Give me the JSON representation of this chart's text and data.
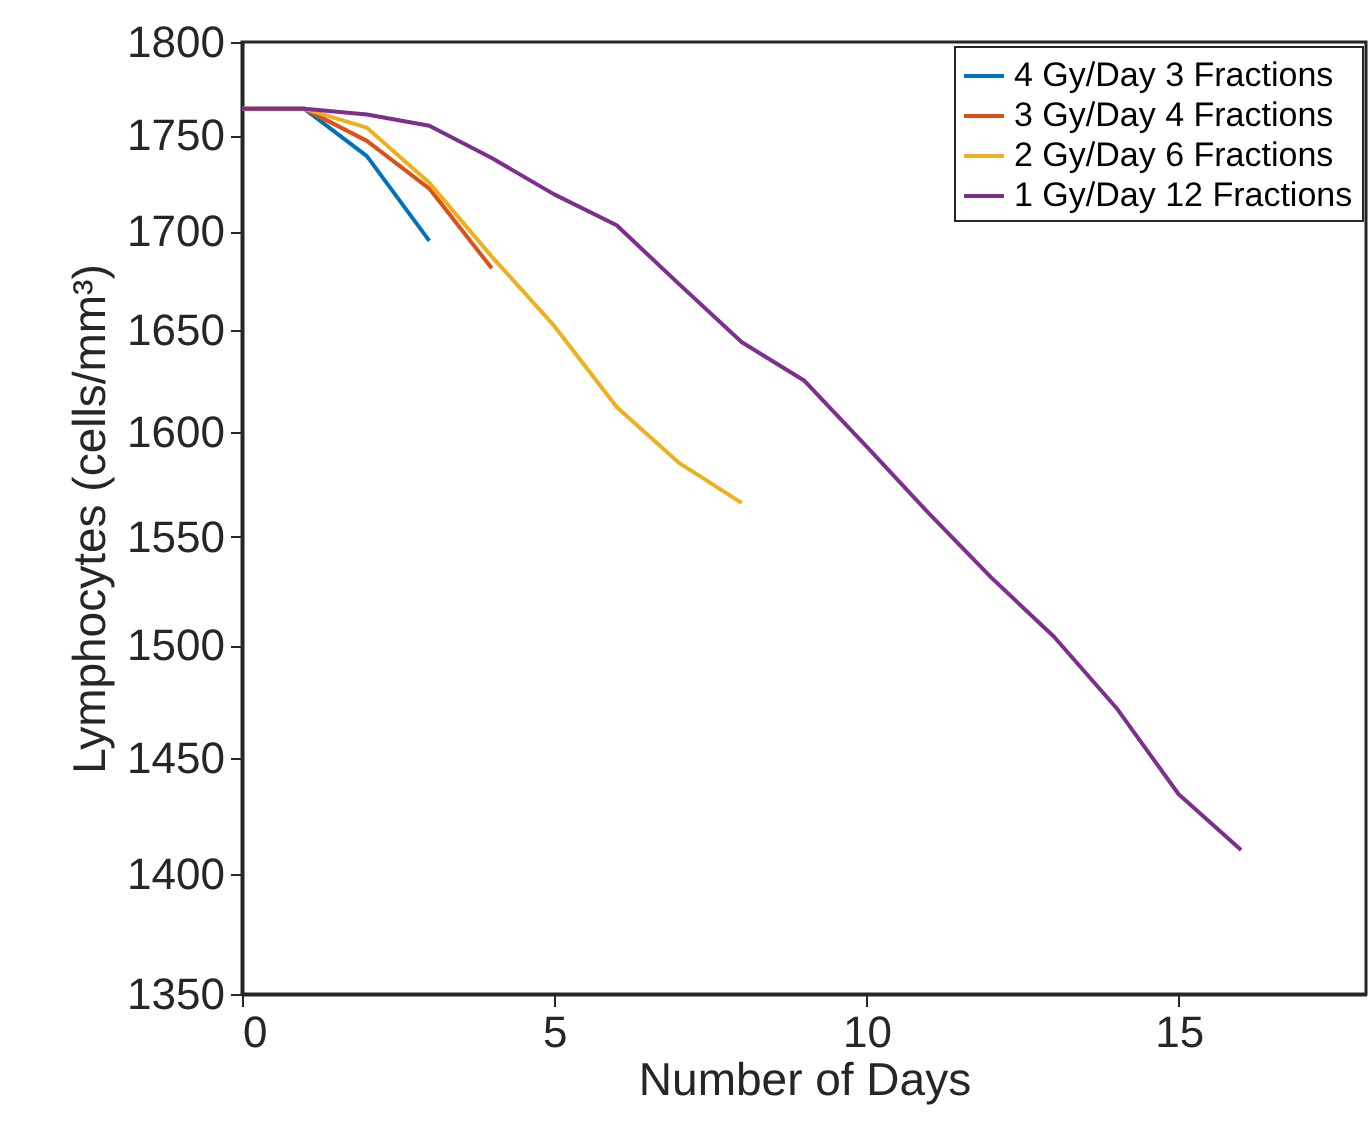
{
  "chart_data": {
    "type": "line",
    "xlabel": "Number of Days",
    "ylabel": "Lymphocytes (cells/mm³)",
    "xlim": [
      0,
      18
    ],
    "xticks": [
      0,
      5,
      10,
      15
    ],
    "ylim": [
      1350,
      1800
    ],
    "yticks": [
      1350,
      1400,
      1450,
      1500,
      1550,
      1600,
      1650,
      1700,
      1750,
      1800
    ],
    "log": "y",
    "grid": false,
    "legend": "top right",
    "marker": "none",
    "line_style": "solid",
    "series": [
      {
        "name": "4 Gy/Day 3 Fractions",
        "color": "#0072bd",
        "x": [
          0,
          1,
          2,
          3
        ],
        "values": [
          1764,
          1764,
          1739,
          1695
        ]
      },
      {
        "name": "3 Gy/Day 4 Fractions",
        "color": "#d95319",
        "x": [
          0,
          1,
          2,
          3,
          4
        ],
        "values": [
          1764,
          1764,
          1747,
          1722,
          1681
        ]
      },
      {
        "name": "2 Gy/Day 6 Fractions",
        "color": "#edb120",
        "x": [
          0,
          1,
          2,
          3,
          4,
          5,
          6,
          7,
          8
        ],
        "values": [
          1764,
          1764,
          1754,
          1725,
          1687,
          1652,
          1612,
          1585,
          1566
        ]
      },
      {
        "name": "1 Gy/Day 12 Fractions",
        "color": "#7e2f8e",
        "x": [
          0,
          1,
          2,
          3,
          4,
          5,
          6,
          7,
          8,
          9,
          10,
          11,
          12,
          13,
          14,
          15,
          16
        ],
        "values": [
          1764,
          1764,
          1761,
          1755,
          1738,
          1719,
          1703,
          1673,
          1644,
          1625,
          1593,
          1561,
          1531,
          1504,
          1472,
          1434,
          1410
        ]
      }
    ]
  }
}
